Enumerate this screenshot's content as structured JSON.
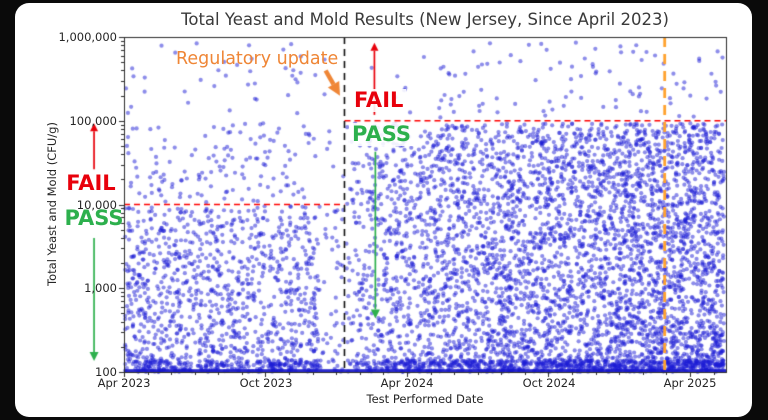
{
  "window": {
    "background": "#0a0a0a",
    "panel_color": "#ffffff"
  },
  "chart_data": {
    "type": "scatter",
    "title": "Total Yeast and Mold Results (New Jersey, Since April 2023)",
    "xlabel": "Test Performed Date",
    "ylabel": "Total Yeast and Mold (CFU/g)",
    "y_scale": "log",
    "ylim": [
      100,
      1000000
    ],
    "xlim_months": [
      0,
      25.53
    ],
    "x_ticks": [
      {
        "month": 0,
        "label": "Apr 2023"
      },
      {
        "month": 6,
        "label": "Oct 2023"
      },
      {
        "month": 12,
        "label": "Apr 2024"
      },
      {
        "month": 18,
        "label": "Oct 2024"
      },
      {
        "month": 24,
        "label": "Apr 2025"
      }
    ],
    "y_ticks": [
      {
        "value": 1000000,
        "label": "1,000,000"
      },
      {
        "value": 100000,
        "label": "100,000"
      },
      {
        "value": 10000,
        "label": "10,000"
      },
      {
        "value": 1000,
        "label": "1,000"
      },
      {
        "value": 100,
        "label": "100"
      }
    ],
    "grid": false,
    "point_style": {
      "color_rgb": [
        28,
        28,
        214
      ],
      "alpha": 0.5,
      "radius": 2.1
    },
    "thresholds": [
      {
        "limit_cfu_g": 10000,
        "applies": "before regulatory update",
        "x_month": [
          0,
          9.35
        ],
        "color": "#ff0000",
        "dash": [
          6,
          4
        ],
        "width": 1.5
      },
      {
        "limit_cfu_g": 100000,
        "applies": "after regulatory update",
        "x_month": [
          9.35,
          25.53
        ],
        "color": "#ff0000",
        "dash": [
          6,
          4
        ],
        "width": 1.5
      }
    ],
    "events": [
      {
        "name": "Regulatory update",
        "x_month": 9.35,
        "color": "#111111",
        "dash": [
          7,
          5
        ],
        "width": 1.6
      },
      {
        "name": "",
        "x_month": 22.93,
        "color": "#ffa22e",
        "dash": [
          10,
          7
        ],
        "width": 2.8
      }
    ],
    "annotations": {
      "regulatory_update": "Regulatory update",
      "fail": "FAIL",
      "pass": "PASS"
    },
    "arrows": [
      {
        "x_month": -1.27,
        "from_log": 4.42,
        "to_log": 4.97,
        "color": "#e8000b",
        "width": 1.7,
        "head_len": 8,
        "head_w": 8
      },
      {
        "x_month": -1.27,
        "from_log": 3.6,
        "to_log": 2.13,
        "color": "#2db04d",
        "width": 1.7,
        "head_len": 9,
        "head_w": 9
      },
      {
        "x_month": 10.62,
        "from_log": 5.07,
        "to_log": 5.93,
        "color": "#e8000b",
        "width": 1.7,
        "head_len": 8,
        "head_w": 8
      },
      {
        "x_month": 10.66,
        "from_log": 4.63,
        "to_log": 2.64,
        "color": "#2db04d",
        "width": 1.7,
        "head_len": 9,
        "head_w": 9
      }
    ],
    "callout_arrow": {
      "from_month": 8.55,
      "from_log": 5.6,
      "to_month": 9.16,
      "to_log": 5.3,
      "color": "#ef8636",
      "width": 4.5,
      "head_len": 13,
      "head_w": 13
    },
    "floor_band": {
      "value": 100,
      "x_month": [
        0,
        25.53
      ],
      "thickness_px": 3.6,
      "color": "rgba(22,22,202,0.92)"
    },
    "point_cloud": {
      "note": "points synthesized from measured densities; values in log10(CFU/g)",
      "seed": 1337,
      "periods": [
        {
          "name": "before_update",
          "x_month": [
            0.05,
            9.3
          ],
          "x_bias_exp": 1.0,
          "col_step": 0.22,
          "col_jitter": 0.9,
          "gap": {
            "from": 8.25,
            "to": 9.3,
            "keep": 0.4
          },
          "bands": [
            {
              "ylog": [
                2.08,
                3.98
              ],
              "count": 1000,
              "y_bias": 1.05
            },
            {
              "ylog": [
                4.02,
                4.97
              ],
              "count": 140,
              "y_bias": 1.0
            },
            {
              "ylog": [
                5.03,
                5.96
              ],
              "count": 40,
              "y_bias": 1.0
            },
            {
              "ylog": [
                2.0,
                2.14
              ],
              "count": 280,
              "y_bias": 1.0
            }
          ]
        },
        {
          "name": "after_update",
          "x_month": [
            9.4,
            25.45
          ],
          "x_bias_exp": 0.74,
          "col_step": 0,
          "col_jitter": 0,
          "gap": null,
          "bands": [
            {
              "ylog": [
                2.08,
                4.97
              ],
              "count": 4100,
              "y_bias": 1.1
            },
            {
              "ylog": [
                5.03,
                5.96
              ],
              "count": 100,
              "y_bias": 1.0
            },
            {
              "ylog": [
                2.0,
                2.14
              ],
              "count": 700,
              "y_bias": 1.0
            }
          ]
        }
      ]
    }
  }
}
